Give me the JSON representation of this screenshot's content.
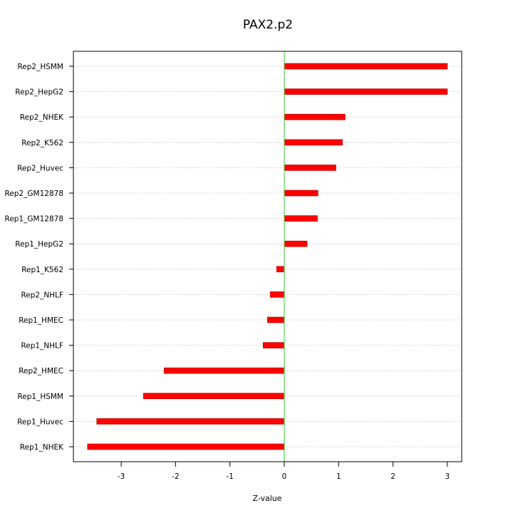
{
  "chart_data": {
    "type": "bar",
    "orientation": "horizontal",
    "title": "PAX2.p2",
    "xlabel": "Z-value",
    "ylabel": "",
    "xlim": [
      -3.9,
      3.25
    ],
    "xticks": [
      -3,
      -2,
      -1,
      0,
      1,
      2,
      3
    ],
    "grid": "horizontal dotted",
    "reference_line": {
      "x": 0,
      "color": "#33cc33"
    },
    "bar_color": "#ff0000",
    "categories": [
      "Rep2_HSMM",
      "Rep2_HepG2",
      "Rep2_NHEK",
      "Rep2_K562",
      "Rep2_Huvec",
      "Rep2_GM12878",
      "Rep1_GM12878",
      "Rep1_HepG2",
      "Rep1_K562",
      "Rep2_NHLF",
      "Rep1_HMEC",
      "Rep1_NHLF",
      "Rep2_HMEC",
      "Rep1_HSMM",
      "Rep1_Huvec",
      "Rep1_NHEK"
    ],
    "values": [
      3.0,
      3.0,
      1.12,
      1.07,
      0.95,
      0.62,
      0.61,
      0.42,
      -0.14,
      -0.26,
      -0.31,
      -0.39,
      -2.21,
      -2.59,
      -3.45,
      -3.62
    ]
  }
}
